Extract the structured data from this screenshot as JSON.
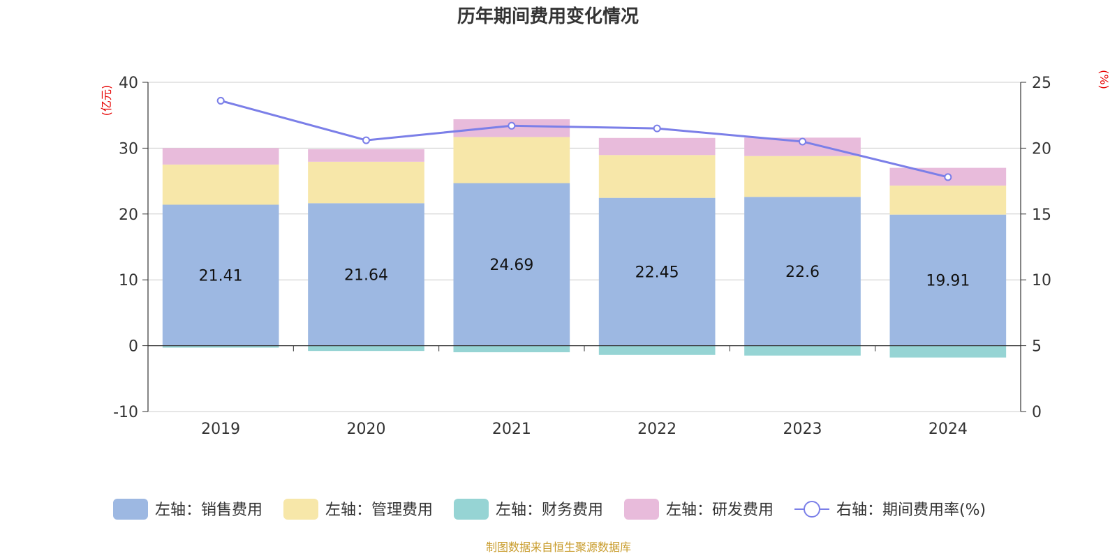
{
  "chart_data": {
    "type": "bar",
    "title": "历年期间费用变化情况",
    "categories": [
      "2019",
      "2020",
      "2021",
      "2022",
      "2023",
      "2024"
    ],
    "left_axis": {
      "unit": "(亿元)",
      "ylim": [
        -10,
        40
      ],
      "ticks": [
        -10,
        0,
        10,
        20,
        30,
        40
      ]
    },
    "right_axis": {
      "unit": "(%)",
      "ylim": [
        0,
        25
      ],
      "ticks": [
        0,
        5,
        10,
        15,
        20,
        25
      ]
    },
    "series": [
      {
        "name": "左轴：销售费用",
        "axis": "left",
        "kind": "bar",
        "color": "#9db8e2",
        "values": [
          21.41,
          21.64,
          24.69,
          22.45,
          22.6,
          19.91
        ],
        "labels": [
          "21.41",
          "21.64",
          "24.69",
          "22.45",
          "22.6",
          "19.91"
        ]
      },
      {
        "name": "左轴：管理费用",
        "axis": "left",
        "kind": "bar",
        "color": "#f7e7a9",
        "values": [
          6.1,
          6.3,
          7.0,
          6.5,
          6.2,
          4.4
        ]
      },
      {
        "name": "左轴：财务费用",
        "axis": "left",
        "kind": "bar",
        "color": "#96d4d4",
        "values": [
          -0.3,
          -0.8,
          -1.0,
          -1.4,
          -1.5,
          -1.8
        ]
      },
      {
        "name": "左轴：研发费用",
        "axis": "left",
        "kind": "bar",
        "color": "#e8bbdb",
        "values": [
          2.5,
          1.9,
          2.7,
          2.6,
          2.8,
          2.7
        ]
      },
      {
        "name": "右轴：期间费用率(%)",
        "axis": "right",
        "kind": "line",
        "color": "#7b7fe8",
        "values": [
          23.6,
          20.6,
          21.7,
          21.5,
          20.5,
          17.8
        ]
      }
    ],
    "grid": true,
    "legend_position": "bottom"
  },
  "source_note": "制图数据来自恒生聚源数据库"
}
